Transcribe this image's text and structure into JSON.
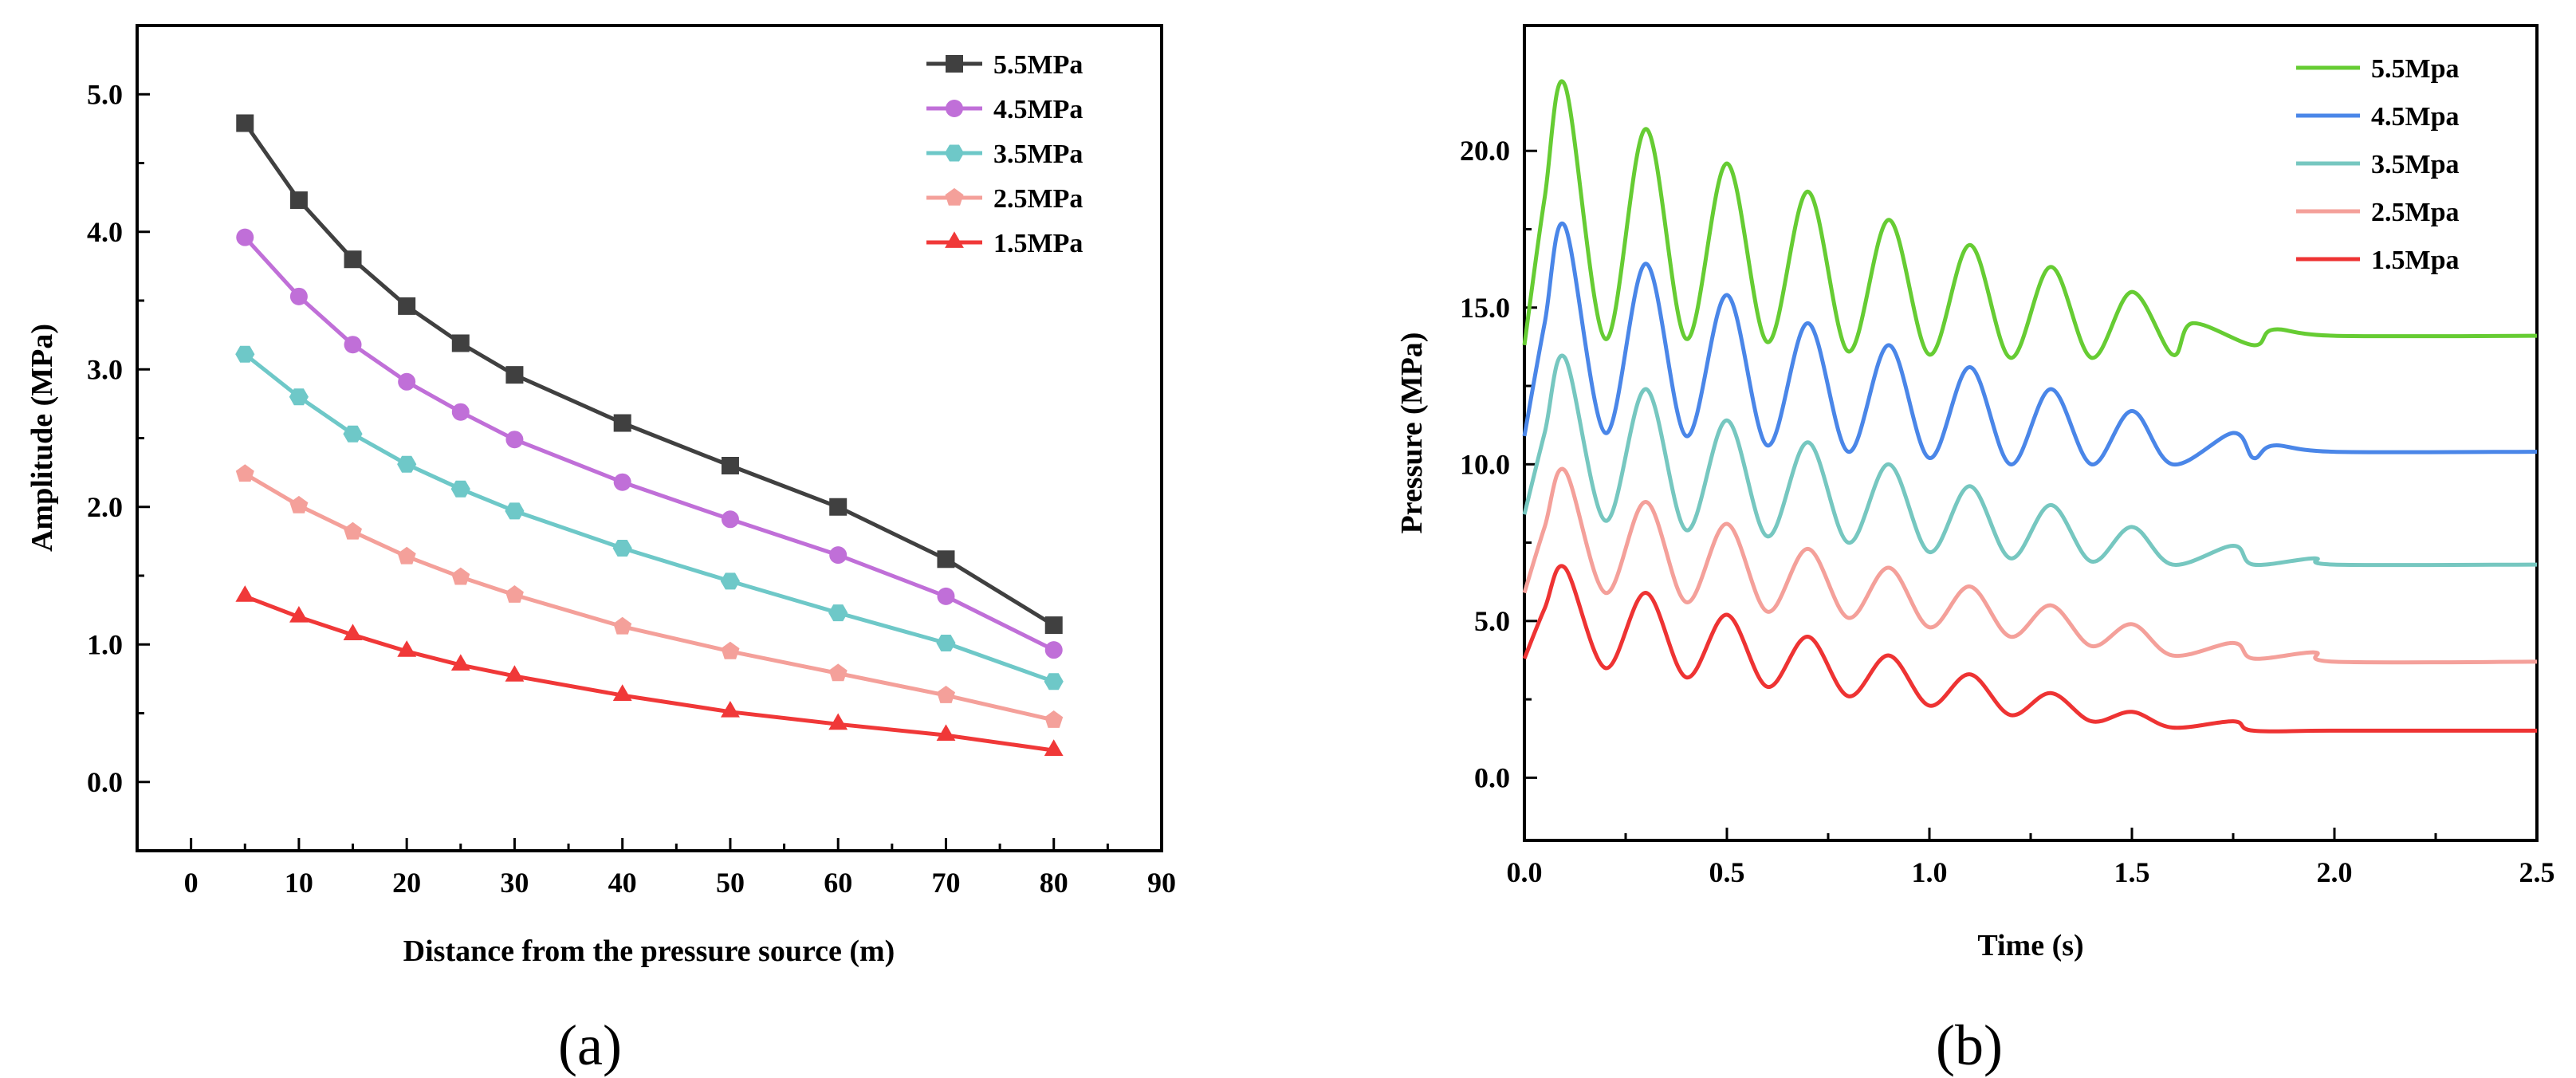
{
  "chart_data": [
    {
      "type": "line",
      "panel_label": "(a)",
      "title": "",
      "xlabel": "Distance from the pressure source (m)",
      "ylabel": "Amplitude (MPa)",
      "xlim": [
        -5,
        90
      ],
      "ylim": [
        -0.5,
        5.5
      ],
      "xticks": [
        0,
        10,
        20,
        30,
        40,
        50,
        60,
        70,
        80,
        90
      ],
      "yticks": [
        0.0,
        1.0,
        2.0,
        3.0,
        4.0,
        5.0
      ],
      "xtick_labels": [
        "0",
        "10",
        "20",
        "30",
        "40",
        "50",
        "60",
        "70",
        "80",
        "90"
      ],
      "ytick_labels": [
        "0.0",
        "1.0",
        "2.0",
        "3.0",
        "4.0",
        "5.0"
      ],
      "legend_position": "top-right",
      "x": [
        5,
        10,
        15,
        20,
        25,
        30,
        40,
        50,
        60,
        70,
        80
      ],
      "series": [
        {
          "name": "5.5MPa",
          "color": "#404040",
          "marker": "square",
          "values": [
            4.79,
            4.23,
            3.8,
            3.46,
            3.19,
            2.96,
            2.61,
            2.3,
            2.0,
            1.62,
            1.14
          ]
        },
        {
          "name": "4.5MPa",
          "color": "#c06fd8",
          "marker": "circle",
          "values": [
            3.96,
            3.53,
            3.18,
            2.91,
            2.69,
            2.49,
            2.18,
            1.91,
            1.65,
            1.35,
            0.96
          ]
        },
        {
          "name": "3.5MPa",
          "color": "#6ec8c8",
          "marker": "hexagon",
          "values": [
            3.11,
            2.8,
            2.53,
            2.31,
            2.13,
            1.97,
            1.7,
            1.46,
            1.23,
            1.01,
            0.73
          ]
        },
        {
          "name": "2.5MPa",
          "color": "#f4a09a",
          "marker": "pentagon",
          "values": [
            2.24,
            2.01,
            1.82,
            1.64,
            1.49,
            1.36,
            1.13,
            0.95,
            0.79,
            0.63,
            0.45
          ]
        },
        {
          "name": "1.5MPa",
          "color": "#f03838",
          "marker": "triangle",
          "values": [
            1.35,
            1.2,
            1.07,
            0.95,
            0.85,
            0.77,
            0.63,
            0.51,
            0.42,
            0.34,
            0.23
          ]
        }
      ]
    },
    {
      "type": "line",
      "panel_label": "(b)",
      "title": "",
      "xlabel": "Time (s)",
      "ylabel": "Pressure (MPa)",
      "xlim": [
        0,
        2.5
      ],
      "ylim": [
        -2,
        24
      ],
      "xticks": [
        0.0,
        0.5,
        1.0,
        1.5,
        2.0,
        2.5
      ],
      "yticks": [
        0.0,
        5.0,
        10.0,
        15.0,
        20.0
      ],
      "xtick_labels": [
        "0.0",
        "0.5",
        "1.0",
        "1.5",
        "2.0",
        "2.5"
      ],
      "ytick_labels": [
        "0.0",
        "5.0",
        "10.0",
        "15.0",
        "20.0"
      ],
      "legend_position": "top-right",
      "series": [
        {
          "name": "5.5Mpa",
          "color": "#66cc33",
          "x": [
            0.0,
            0.05,
            0.1,
            0.2,
            0.3,
            0.4,
            0.5,
            0.6,
            0.7,
            0.8,
            0.9,
            1.0,
            1.1,
            1.2,
            1.3,
            1.4,
            1.5,
            1.6,
            1.65,
            1.8,
            1.85,
            2.0,
            2.5
          ],
          "values": [
            13.8,
            18.5,
            22.1,
            14.0,
            20.7,
            14.0,
            19.6,
            13.9,
            18.7,
            13.6,
            17.8,
            13.5,
            17.0,
            13.4,
            16.3,
            13.4,
            15.5,
            13.5,
            14.5,
            13.8,
            14.3,
            14.1,
            14.1
          ]
        },
        {
          "name": "4.5Mpa",
          "color": "#4a86e8",
          "x": [
            0.0,
            0.05,
            0.1,
            0.2,
            0.3,
            0.4,
            0.5,
            0.6,
            0.7,
            0.8,
            0.9,
            1.0,
            1.1,
            1.2,
            1.3,
            1.4,
            1.5,
            1.6,
            1.75,
            1.8,
            1.85,
            2.0,
            2.5
          ],
          "values": [
            10.9,
            14.5,
            17.6,
            11.0,
            16.4,
            10.9,
            15.4,
            10.6,
            14.5,
            10.4,
            13.8,
            10.2,
            13.1,
            10.0,
            12.4,
            10.0,
            11.7,
            10.0,
            11.0,
            10.2,
            10.6,
            10.4,
            10.4
          ]
        },
        {
          "name": "3.5Mpa",
          "color": "#76c7c0",
          "x": [
            0.0,
            0.05,
            0.1,
            0.2,
            0.3,
            0.4,
            0.5,
            0.6,
            0.7,
            0.8,
            0.9,
            1.0,
            1.1,
            1.2,
            1.3,
            1.4,
            1.5,
            1.6,
            1.75,
            1.8,
            1.95,
            2.0,
            2.5
          ],
          "values": [
            8.4,
            11.0,
            13.4,
            8.2,
            12.4,
            7.9,
            11.4,
            7.7,
            10.7,
            7.5,
            10.0,
            7.2,
            9.3,
            7.0,
            8.7,
            6.9,
            8.0,
            6.8,
            7.4,
            6.8,
            7.0,
            6.8,
            6.8
          ]
        },
        {
          "name": "2.5Mpa",
          "color": "#f4a09a",
          "x": [
            0.0,
            0.05,
            0.1,
            0.2,
            0.3,
            0.4,
            0.5,
            0.6,
            0.7,
            0.8,
            0.9,
            1.0,
            1.1,
            1.2,
            1.3,
            1.4,
            1.5,
            1.6,
            1.75,
            1.8,
            1.95,
            2.0,
            2.5
          ],
          "values": [
            5.9,
            8.0,
            9.8,
            5.9,
            8.8,
            5.6,
            8.1,
            5.3,
            7.3,
            5.1,
            6.7,
            4.8,
            6.1,
            4.5,
            5.5,
            4.2,
            4.9,
            3.9,
            4.3,
            3.8,
            4.0,
            3.7,
            3.7
          ]
        },
        {
          "name": "1.5Mpa",
          "color": "#ee3333",
          "x": [
            0.0,
            0.05,
            0.1,
            0.2,
            0.3,
            0.4,
            0.5,
            0.6,
            0.7,
            0.8,
            0.9,
            1.0,
            1.1,
            1.2,
            1.3,
            1.4,
            1.5,
            1.6,
            1.75,
            1.8,
            2.0,
            2.5
          ],
          "values": [
            3.8,
            5.4,
            6.7,
            3.5,
            5.9,
            3.2,
            5.2,
            2.9,
            4.5,
            2.6,
            3.9,
            2.3,
            3.3,
            2.0,
            2.7,
            1.8,
            2.1,
            1.6,
            1.8,
            1.5,
            1.5,
            1.5
          ]
        }
      ]
    }
  ]
}
